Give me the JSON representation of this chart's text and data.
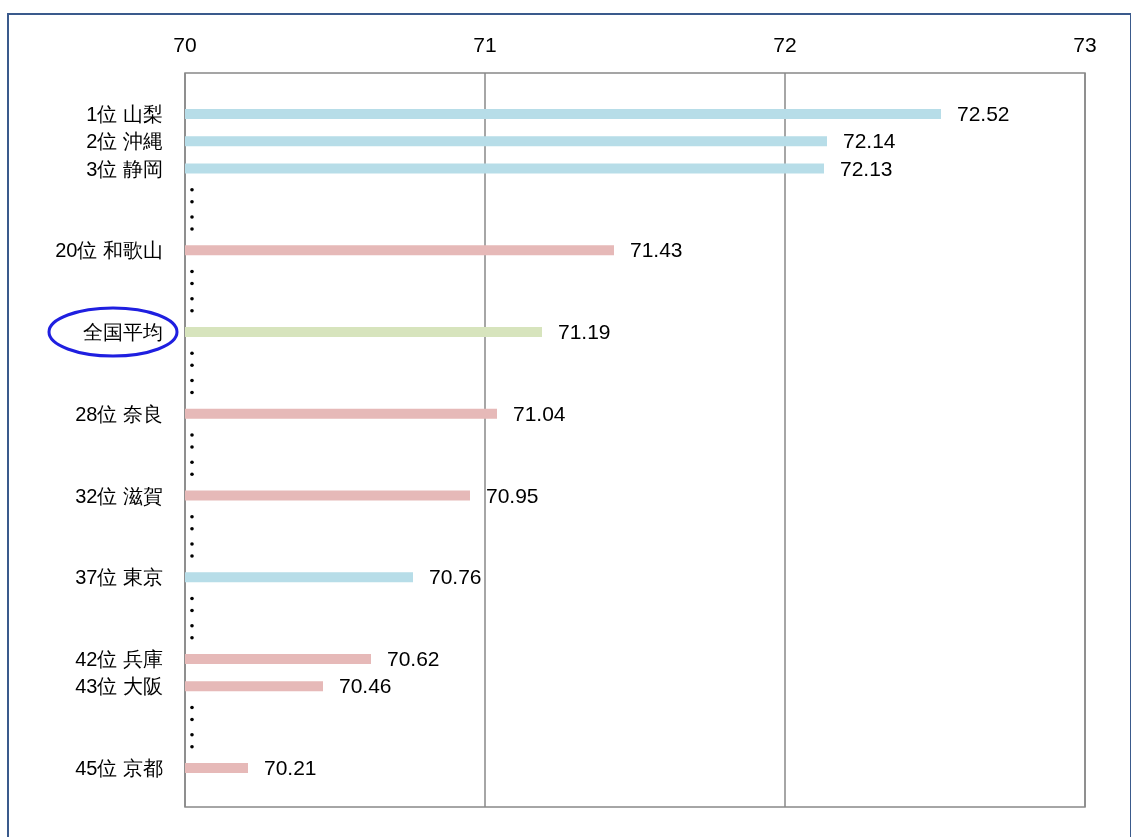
{
  "chart_data": {
    "type": "bar",
    "orientation": "horizontal",
    "categories": [
      "1位 山梨",
      "2位 沖縄",
      "3位 静岡",
      null,
      null,
      "20位 和歌山",
      null,
      null,
      "全国平均",
      null,
      null,
      "28位 奈良",
      null,
      null,
      "32位 滋賀",
      null,
      null,
      "37位 東京",
      null,
      null,
      "42位 兵庫",
      "43位 大阪",
      null,
      null,
      "45位 京都"
    ],
    "values": [
      72.52,
      72.14,
      72.13,
      null,
      null,
      71.43,
      null,
      null,
      71.19,
      null,
      null,
      71.04,
      null,
      null,
      70.95,
      null,
      null,
      70.76,
      null,
      null,
      70.62,
      70.46,
      null,
      null,
      70.21
    ],
    "colors": [
      "#b7dde8",
      "#b7dde8",
      "#b7dde8",
      null,
      null,
      "#e6b9b8",
      null,
      null,
      "#d7e4bd",
      null,
      null,
      "#e6b9b8",
      null,
      null,
      "#e6b9b8",
      null,
      null,
      "#b7dde8",
      null,
      null,
      "#e6b9b8",
      "#e6b9b8",
      null,
      null,
      "#e6b9b8"
    ],
    "xlim": [
      70,
      73
    ],
    "xticks": [
      70,
      71,
      72,
      73
    ],
    "grid": "x",
    "data_labels": true
  }
}
